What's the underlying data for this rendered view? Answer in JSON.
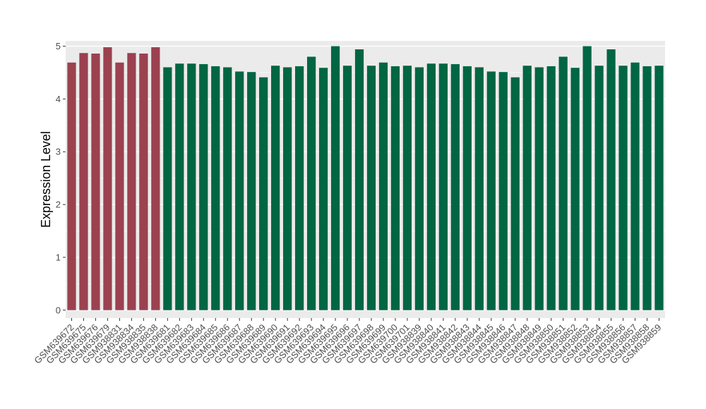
{
  "chart_data": {
    "type": "bar",
    "title": "",
    "xlabel": "",
    "ylabel": "Expression Level",
    "ylim": [
      -0.15,
      5.1
    ],
    "yticks": [
      0,
      1,
      2,
      3,
      4,
      5
    ],
    "grid": true,
    "legend": "none",
    "colors": {
      "group_a": "#9b4150",
      "group_b": "#006644",
      "panel_bg": "#ebebeb",
      "grid": "#ffffff"
    },
    "categories": [
      "GSM639672",
      "GSM639675",
      "GSM639676",
      "GSM639679",
      "GSM938831",
      "GSM938834",
      "GSM938835",
      "GSM938838",
      "GSM639681",
      "GSM639682",
      "GSM639683",
      "GSM639684",
      "GSM639685",
      "GSM639686",
      "GSM639687",
      "GSM639688",
      "GSM639689",
      "GSM639690",
      "GSM639691",
      "GSM639692",
      "GSM639693",
      "GSM639694",
      "GSM639695",
      "GSM639696",
      "GSM639697",
      "GSM639698",
      "GSM639699",
      "GSM639700",
      "GSM639701",
      "GSM938839",
      "GSM938840",
      "GSM938841",
      "GSM938842",
      "GSM938843",
      "GSM938844",
      "GSM938845",
      "GSM938846",
      "GSM938847",
      "GSM938848",
      "GSM938849",
      "GSM938850",
      "GSM938851",
      "GSM938852",
      "GSM938853",
      "GSM938854",
      "GSM938855",
      "GSM938856",
      "GSM938857",
      "GSM938858",
      "GSM938859"
    ],
    "values": [
      4.69,
      4.87,
      4.86,
      4.98,
      4.69,
      4.87,
      4.86,
      4.98,
      4.6,
      4.67,
      4.67,
      4.66,
      4.62,
      4.6,
      4.52,
      4.51,
      4.41,
      4.63,
      4.6,
      4.62,
      4.8,
      4.59,
      5.0,
      4.63,
      4.94,
      4.63,
      4.69,
      4.62,
      4.63,
      4.6,
      4.67,
      4.67,
      4.66,
      4.62,
      4.6,
      4.52,
      4.51,
      4.41,
      4.63,
      4.6,
      4.62,
      4.8,
      4.59,
      5.0,
      4.63,
      4.94,
      4.63,
      4.69,
      4.62,
      4.63
    ],
    "groups": [
      "a",
      "a",
      "a",
      "a",
      "a",
      "a",
      "a",
      "a",
      "b",
      "b",
      "b",
      "b",
      "b",
      "b",
      "b",
      "b",
      "b",
      "b",
      "b",
      "b",
      "b",
      "b",
      "b",
      "b",
      "b",
      "b",
      "b",
      "b",
      "b",
      "b",
      "b",
      "b",
      "b",
      "b",
      "b",
      "b",
      "b",
      "b",
      "b",
      "b",
      "b",
      "b",
      "b",
      "b",
      "b",
      "b",
      "b",
      "b",
      "b",
      "b"
    ]
  }
}
